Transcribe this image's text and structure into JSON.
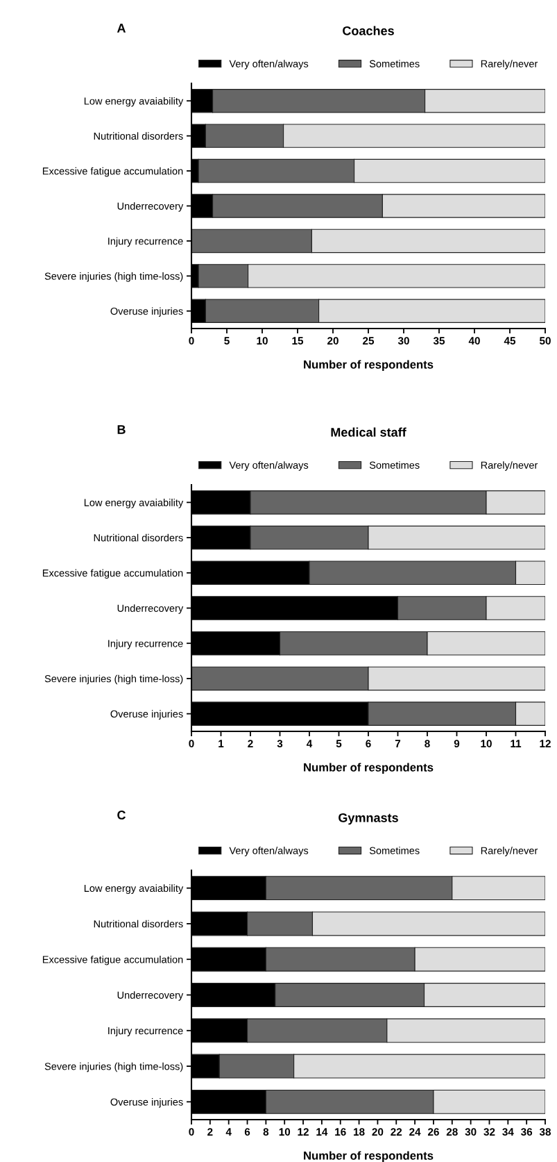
{
  "chart_data": [
    {
      "type": "bar",
      "orientation": "horizontal",
      "stacked": true,
      "title": "Coaches",
      "annotations": [
        "A"
      ],
      "xlabel": "Number of respondents",
      "categories": [
        "Low energy avaiability",
        "Nutritional disorders",
        "Excessive fatigue accumulation",
        "Underrecovery",
        "Injury recurrence",
        "Severe injuries (high time-loss)",
        "Overuse injuries"
      ],
      "series": [
        {
          "name": "Very often/always",
          "color": "#000000",
          "values": [
            3,
            2,
            1,
            3,
            0,
            1,
            2
          ]
        },
        {
          "name": "Sometimes",
          "color": "#666666",
          "values": [
            30,
            11,
            22,
            24,
            17,
            7,
            16
          ]
        },
        {
          "name": "Rarely/never",
          "color": "#dddddd",
          "values": [
            17,
            37,
            27,
            23,
            33,
            42,
            32
          ]
        }
      ],
      "xlim": [
        0,
        50
      ],
      "xticks": [
        0,
        5,
        10,
        15,
        20,
        25,
        30,
        35,
        40,
        45,
        50
      ],
      "legend": "top",
      "grid": false
    },
    {
      "type": "bar",
      "orientation": "horizontal",
      "stacked": true,
      "title": "Medical staff",
      "annotations": [
        "B"
      ],
      "xlabel": "Number of respondents",
      "categories": [
        "Low energy avaiability",
        "Nutritional disorders",
        "Excessive fatigue accumulation",
        "Underrecovery",
        "Injury recurrence",
        "Severe injuries (high time-loss)",
        "Overuse injuries"
      ],
      "series": [
        {
          "name": "Very often/always",
          "color": "#000000",
          "values": [
            2,
            2,
            4,
            7,
            3,
            0,
            6
          ]
        },
        {
          "name": "Sometimes",
          "color": "#666666",
          "values": [
            8,
            4,
            7,
            3,
            5,
            6,
            5
          ]
        },
        {
          "name": "Rarely/never",
          "color": "#dddddd",
          "values": [
            2,
            6,
            1,
            2,
            4,
            6,
            1
          ]
        }
      ],
      "xlim": [
        0,
        12
      ],
      "xticks": [
        0,
        1,
        2,
        3,
        4,
        5,
        6,
        7,
        8,
        9,
        10,
        11,
        12
      ],
      "legend": "top",
      "grid": false
    },
    {
      "type": "bar",
      "orientation": "horizontal",
      "stacked": true,
      "title": "Gymnasts",
      "annotations": [
        "C"
      ],
      "xlabel": "Number of respondents",
      "categories": [
        "Low energy avaiability",
        "Nutritional disorders",
        "Excessive fatigue accumulation",
        "Underrecovery",
        "Injury recurrence",
        "Severe injuries (high time-loss)",
        "Overuse injuries"
      ],
      "series": [
        {
          "name": "Very often/always",
          "color": "#000000",
          "values": [
            8,
            6,
            8,
            9,
            6,
            3,
            8
          ]
        },
        {
          "name": "Sometimes",
          "color": "#666666",
          "values": [
            20,
            7,
            16,
            16,
            15,
            8,
            18
          ]
        },
        {
          "name": "Rarely/never",
          "color": "#dddddd",
          "values": [
            10,
            25,
            14,
            13,
            17,
            27,
            12
          ]
        }
      ],
      "xlim": [
        0,
        38
      ],
      "xticks": [
        0,
        2,
        4,
        6,
        8,
        10,
        12,
        14,
        16,
        18,
        20,
        22,
        24,
        26,
        28,
        30,
        32,
        34,
        36,
        38
      ],
      "legend": "top",
      "grid": false
    }
  ]
}
